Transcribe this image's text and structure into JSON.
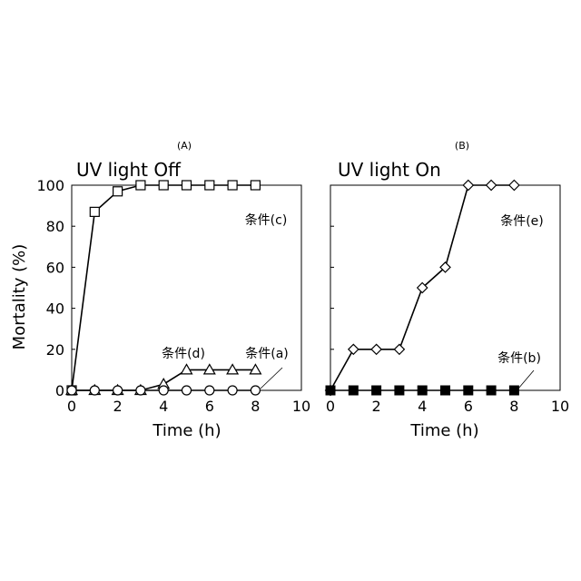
{
  "chart_data": [
    {
      "type": "line",
      "panel_label": "(A)",
      "title": "UV light Off",
      "xlabel": "Time (h)",
      "ylabel": "Mortality (%)",
      "xlim": [
        0,
        10
      ],
      "ylim": [
        0,
        100
      ],
      "xticks": [
        "0",
        "2",
        "4",
        "6",
        "8",
        "10"
      ],
      "yticks": [
        "0",
        "20",
        "40",
        "60",
        "80",
        "100"
      ],
      "grid": false,
      "series": [
        {
          "name": "条件(c)",
          "marker": "square-open",
          "x": [
            0,
            1,
            2,
            3,
            4,
            5,
            6,
            7,
            8
          ],
          "values": [
            0,
            87,
            97,
            100,
            100,
            100,
            100,
            100,
            100
          ]
        },
        {
          "name": "条件(d)",
          "marker": "triangle-open",
          "x": [
            0,
            1,
            2,
            3,
            4,
            5,
            6,
            7,
            8
          ],
          "values": [
            0,
            0,
            0,
            0,
            3,
            10,
            10,
            10,
            10
          ]
        },
        {
          "name": "条件(a)",
          "marker": "circle-open",
          "x": [
            0,
            1,
            2,
            3,
            4,
            5,
            6,
            7,
            8
          ],
          "values": [
            0,
            0,
            0,
            0,
            0,
            0,
            0,
            0,
            0
          ]
        }
      ],
      "annotations": [
        {
          "text": "条件(c)",
          "series": 0
        },
        {
          "text": "条件(d)",
          "series": 1
        },
        {
          "text": "条件(a)",
          "series": 2
        }
      ]
    },
    {
      "type": "line",
      "panel_label": "(B)",
      "title": "UV light On",
      "xlabel": "Time (h)",
      "ylabel": "",
      "xlim": [
        0,
        10
      ],
      "ylim": [
        0,
        100
      ],
      "xticks": [
        "0",
        "2",
        "4",
        "6",
        "8",
        "10"
      ],
      "yticks": [],
      "grid": false,
      "series": [
        {
          "name": "条件(e)",
          "marker": "diamond-open",
          "x": [
            0,
            1,
            2,
            3,
            4,
            5,
            6,
            7,
            8
          ],
          "values": [
            0,
            20,
            20,
            20,
            50,
            60,
            100,
            100,
            100
          ]
        },
        {
          "name": "条件(b)",
          "marker": "square-filled",
          "x": [
            0,
            1,
            2,
            3,
            4,
            5,
            6,
            7,
            8
          ],
          "values": [
            0,
            0,
            0,
            0,
            0,
            0,
            0,
            0,
            0
          ]
        }
      ],
      "annotations": [
        {
          "text": "条件(e)",
          "series": 0
        },
        {
          "text": "条件(b)",
          "series": 1
        }
      ]
    }
  ]
}
